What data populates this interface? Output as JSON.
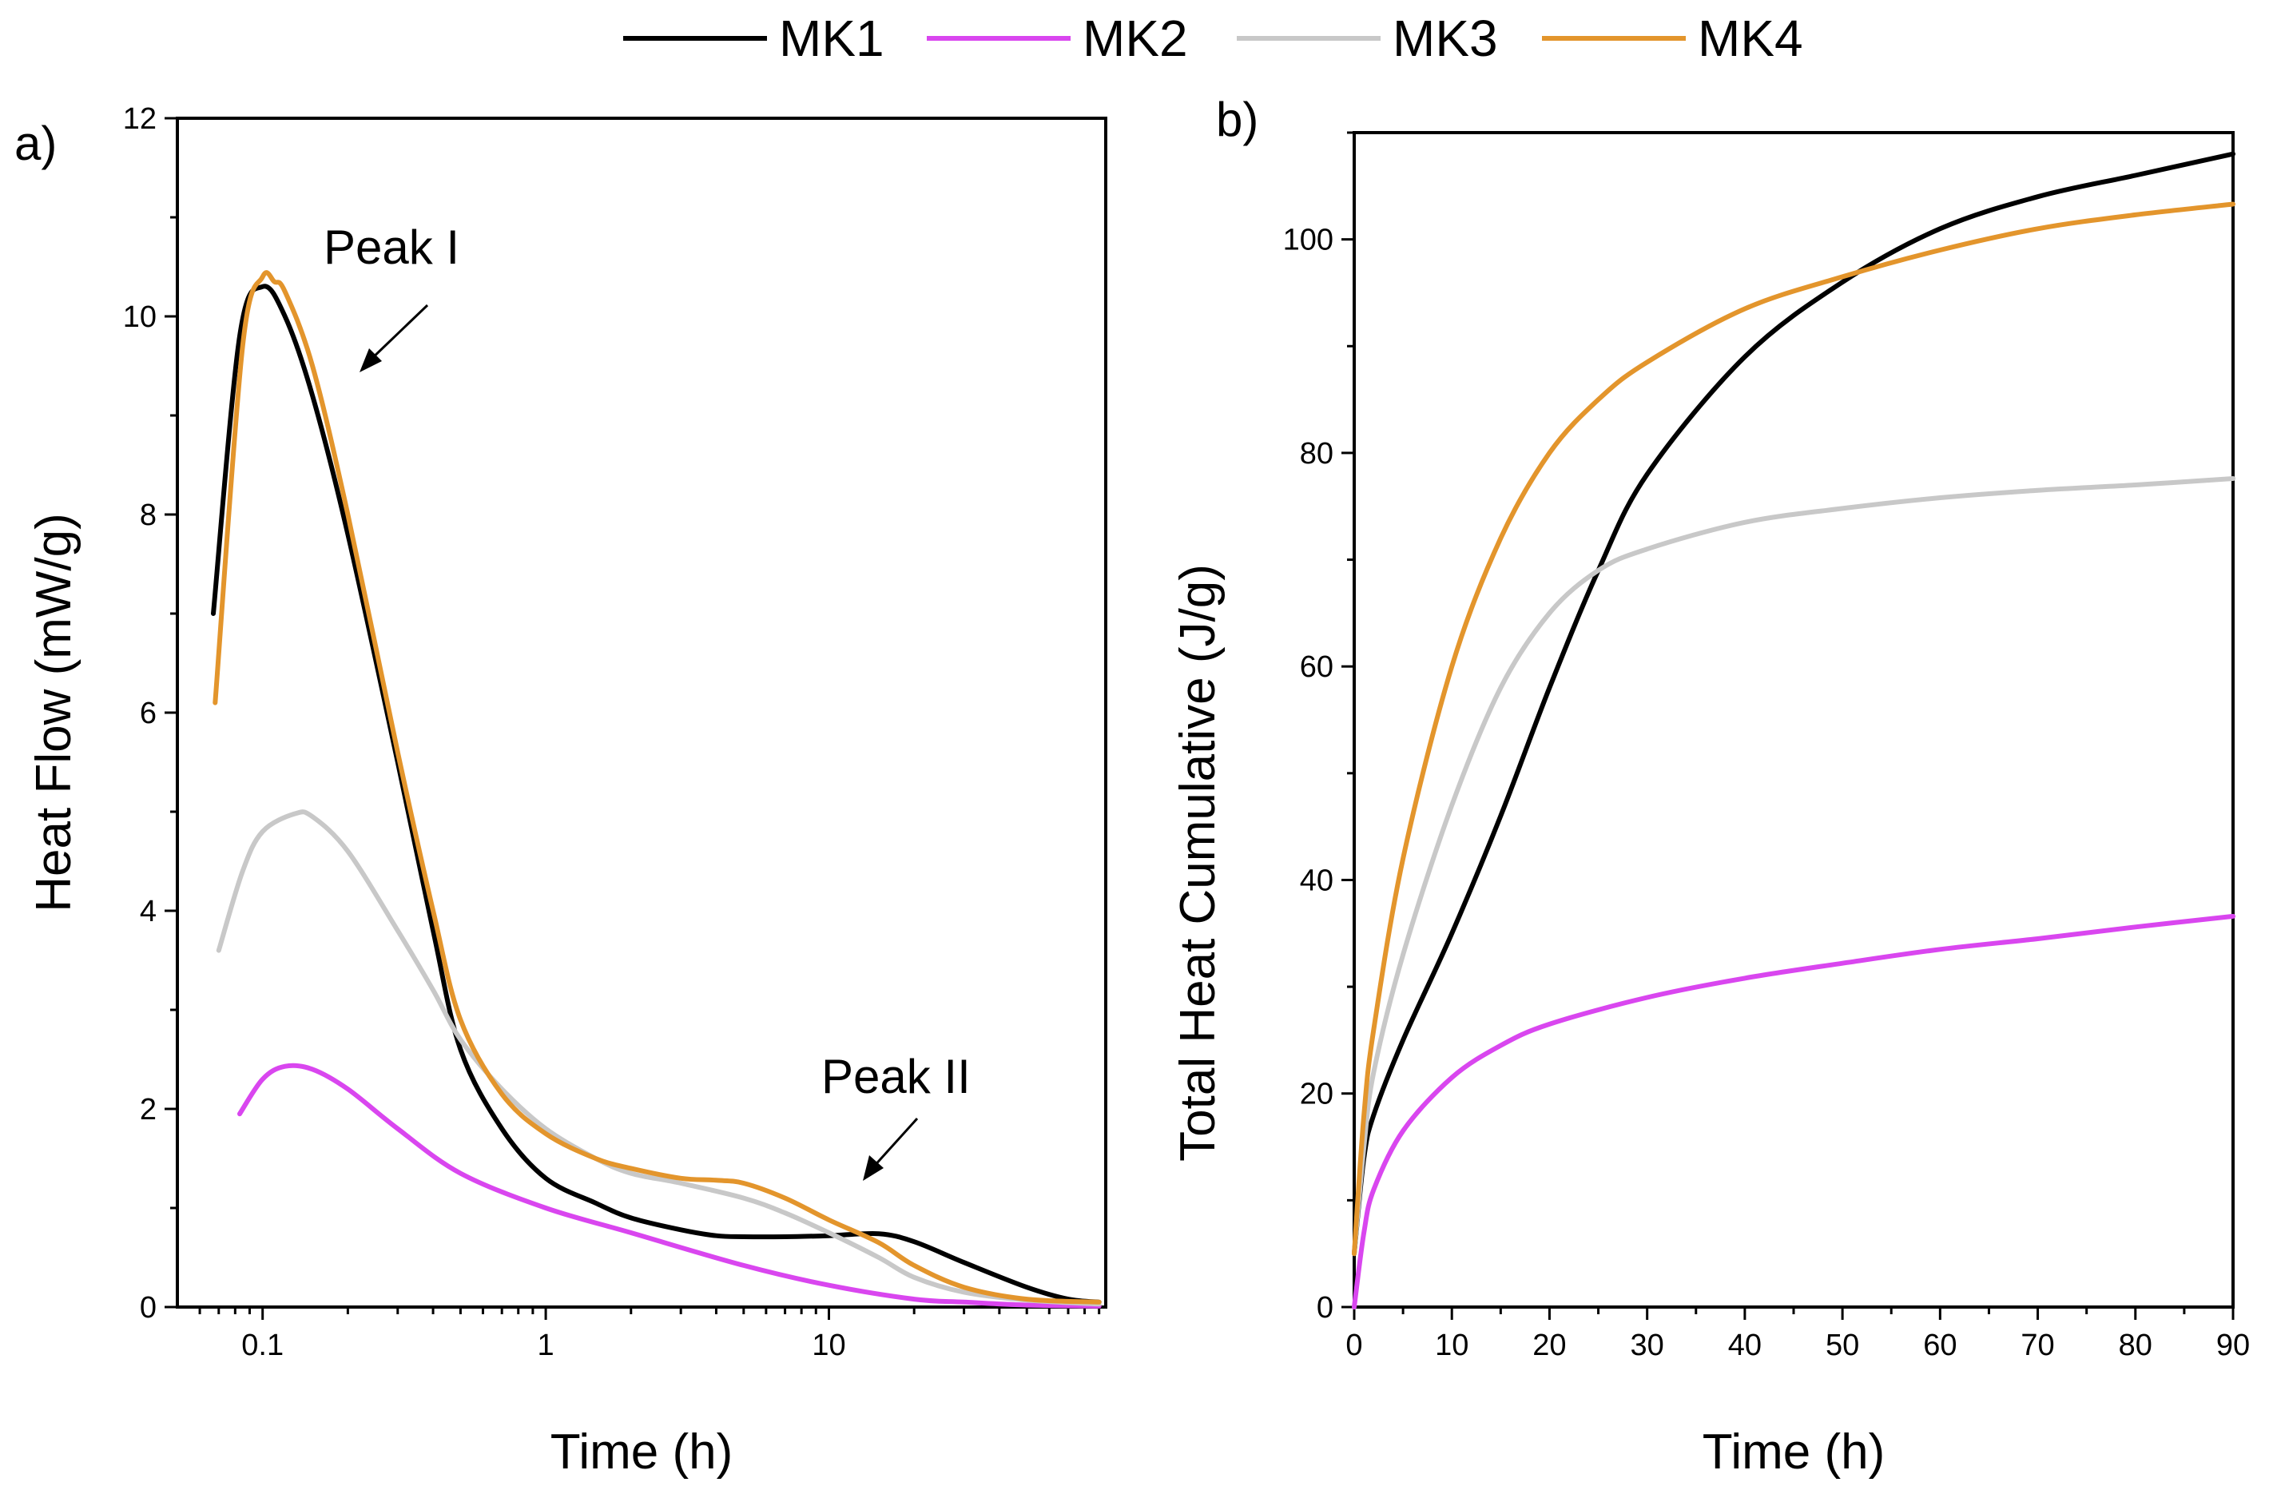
{
  "legend": [
    {
      "name": "MK1",
      "color": "#000000"
    },
    {
      "name": "MK2",
      "color": "#d946ef"
    },
    {
      "name": "MK3",
      "color": "#c8c8c8"
    },
    {
      "name": "MK4",
      "color": "#e3952c"
    }
  ],
  "chart_data": [
    {
      "panel_label": "a)",
      "type": "line",
      "xscale": "log",
      "xlabel": "Time (h)",
      "ylabel": "Heat Flow (mW/g)",
      "xlim": [
        0.05,
        95
      ],
      "ylim": [
        0,
        12
      ],
      "xticks": [
        0.1,
        1,
        10
      ],
      "xtick_labels": [
        "0.1",
        "1",
        "10"
      ],
      "yticks": [
        0,
        2,
        4,
        6,
        8,
        10,
        12
      ],
      "ytick_labels": [
        "0",
        "2",
        "4",
        "6",
        "8",
        "10",
        "12"
      ],
      "annotations": [
        {
          "text": "Peak I",
          "x": 0.12,
          "y": 10.5
        },
        {
          "text": "Peak II",
          "x": 12,
          "y": 1.2
        }
      ],
      "series": [
        {
          "name": "MK1",
          "color": "#000000",
          "x": [
            0.067,
            0.083,
            0.1,
            0.12,
            0.15,
            0.2,
            0.3,
            0.4,
            0.5,
            0.7,
            1,
            1.5,
            2,
            3,
            4,
            5,
            7,
            10,
            15,
            20,
            30,
            50,
            70,
            90
          ],
          "y": [
            7.0,
            9.8,
            10.3,
            10.0,
            9.2,
            7.8,
            5.5,
            3.8,
            2.6,
            1.8,
            1.3,
            1.05,
            0.9,
            0.78,
            0.72,
            0.71,
            0.71,
            0.72,
            0.74,
            0.66,
            0.45,
            0.2,
            0.08,
            0.05
          ]
        },
        {
          "name": "MK2",
          "color": "#d946ef",
          "x": [
            0.083,
            0.1,
            0.12,
            0.15,
            0.2,
            0.3,
            0.5,
            1,
            2,
            5,
            10,
            20,
            30,
            50,
            90
          ],
          "y": [
            1.95,
            2.3,
            2.43,
            2.4,
            2.2,
            1.8,
            1.35,
            1.0,
            0.75,
            0.42,
            0.22,
            0.08,
            0.05,
            0.02,
            0.01
          ]
        },
        {
          "name": "MK3",
          "color": "#c8c8c8",
          "x": [
            0.07,
            0.085,
            0.1,
            0.13,
            0.15,
            0.2,
            0.3,
            0.4,
            0.5,
            0.7,
            1,
            1.5,
            2,
            3,
            5,
            7,
            10,
            15,
            20,
            30,
            50,
            90
          ],
          "y": [
            3.6,
            4.4,
            4.8,
            4.98,
            4.95,
            4.6,
            3.8,
            3.2,
            2.7,
            2.2,
            1.8,
            1.5,
            1.35,
            1.25,
            1.1,
            0.95,
            0.75,
            0.5,
            0.3,
            0.15,
            0.07,
            0.03
          ]
        },
        {
          "name": "MK4",
          "color": "#e3952c",
          "x": [
            0.068,
            0.085,
            0.1,
            0.11,
            0.12,
            0.15,
            0.2,
            0.3,
            0.4,
            0.5,
            0.7,
            1,
            1.5,
            2,
            3,
            4,
            5,
            7,
            10,
            15,
            20,
            30,
            50,
            90
          ],
          "y": [
            6.1,
            9.7,
            10.4,
            10.35,
            10.25,
            9.5,
            8.0,
            5.6,
            4.0,
            2.9,
            2.15,
            1.75,
            1.5,
            1.4,
            1.3,
            1.28,
            1.25,
            1.1,
            0.88,
            0.65,
            0.42,
            0.2,
            0.08,
            0.05
          ]
        }
      ]
    },
    {
      "panel_label": "b)",
      "type": "line",
      "xscale": "linear",
      "xlabel": "Time (h)",
      "ylabel": "Total Heat Cumulative (J/g)",
      "xlim": [
        0,
        90
      ],
      "ylim": [
        0,
        110
      ],
      "xticks": [
        0,
        10,
        20,
        30,
        40,
        50,
        60,
        70,
        80,
        90
      ],
      "xtick_labels": [
        "0",
        "10",
        "20",
        "30",
        "40",
        "50",
        "60",
        "70",
        "80",
        "90"
      ],
      "yticks": [
        0,
        20,
        40,
        60,
        80,
        100
      ],
      "ytick_labels": [
        "0",
        "20",
        "40",
        "60",
        "80",
        "100"
      ],
      "series": [
        {
          "name": "MK1",
          "color": "#000000",
          "x": [
            0,
            1,
            2,
            5,
            10,
            15,
            20,
            25,
            30,
            40,
            50,
            60,
            70,
            80,
            90
          ],
          "y": [
            5,
            14,
            18,
            25,
            35,
            46,
            58,
            69,
            78,
            89,
            96,
            101,
            104,
            106,
            108
          ]
        },
        {
          "name": "MK2",
          "color": "#d946ef",
          "x": [
            0,
            1,
            2,
            5,
            10,
            15,
            20,
            30,
            40,
            50,
            60,
            70,
            80,
            90
          ],
          "y": [
            0,
            7,
            11,
            16.5,
            21.5,
            24.5,
            26.5,
            29,
            30.8,
            32.2,
            33.5,
            34.5,
            35.6,
            36.6
          ]
        },
        {
          "name": "MK3",
          "color": "#c8c8c8",
          "x": [
            0,
            1,
            2,
            5,
            10,
            15,
            20,
            25,
            30,
            40,
            50,
            60,
            70,
            80,
            90
          ],
          "y": [
            5,
            15,
            22,
            33,
            47,
            58,
            65,
            69,
            71,
            73.5,
            74.8,
            75.8,
            76.5,
            77,
            77.6
          ]
        },
        {
          "name": "MK4",
          "color": "#e3952c",
          "x": [
            0,
            1,
            2,
            5,
            10,
            15,
            20,
            25,
            30,
            40,
            50,
            60,
            70,
            80,
            90
          ],
          "y": [
            5,
            18,
            26,
            42,
            60,
            72,
            80,
            85,
            88.5,
            93.5,
            96.5,
            99,
            101,
            102.3,
            103.3
          ]
        }
      ]
    }
  ]
}
